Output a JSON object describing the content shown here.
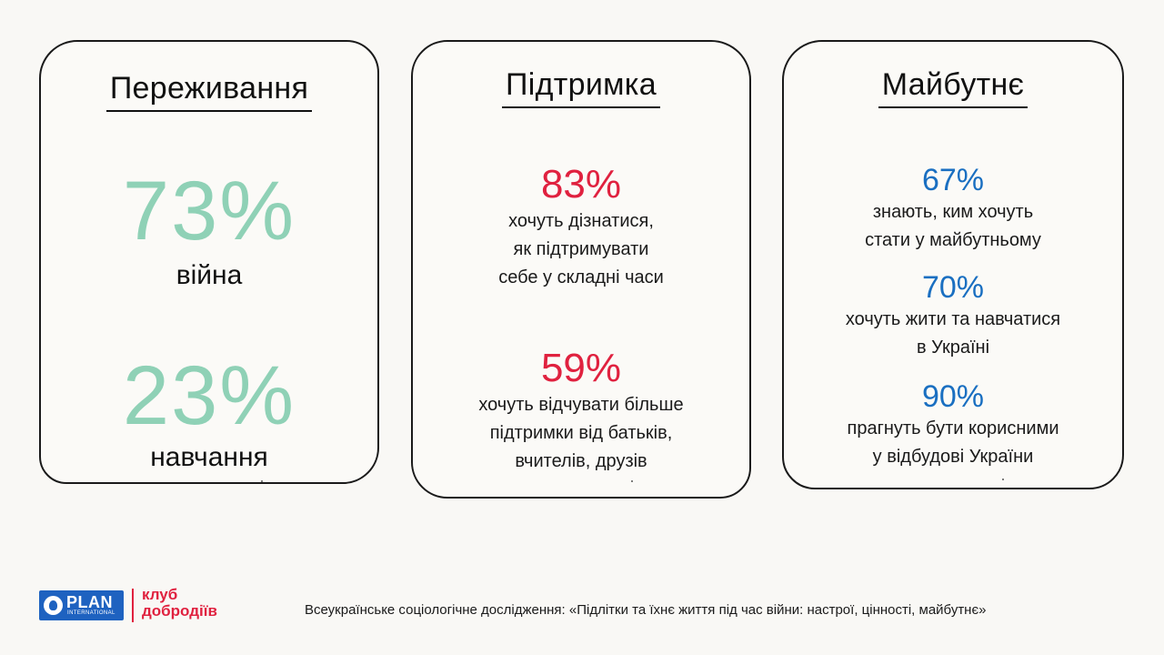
{
  "cards": [
    {
      "title": "Переживання",
      "stats": [
        {
          "value": "73%",
          "label": "війна"
        },
        {
          "value": "23%",
          "label": "навчання"
        }
      ]
    },
    {
      "title": "Підтримка",
      "stats": [
        {
          "value": "83%",
          "lines": [
            "хочуть дізнатися,",
            "як підтримувати",
            "себе у складні часи"
          ]
        },
        {
          "value": "59%",
          "lines": [
            "хочуть відчувати більше",
            "підтримки від батьків,",
            "вчителів, друзів"
          ]
        }
      ]
    },
    {
      "title": "Майбутнє",
      "stats": [
        {
          "value": "67%",
          "lines": [
            "знають, ким хочуть",
            "стати у майбутньому"
          ]
        },
        {
          "value": "70%",
          "lines": [
            "хочуть жити та навчатися",
            "в Україні"
          ]
        },
        {
          "value": "90%",
          "lines": [
            "прагнуть бути корисними",
            "у відбудові України"
          ]
        }
      ]
    }
  ],
  "footer": {
    "plan_logo": {
      "word": "PLAN",
      "sub": "INTERNATIONAL"
    },
    "club_logo": {
      "line1": "клуб",
      "line2": "добродіїв"
    },
    "source": "Всеукраїнське соціологічне дослідження: «Підлітки та їхнє життя під час війни: настрої, цінності, майбутнє»"
  },
  "colors": {
    "green": "#8fd1b6",
    "red": "#e0213f",
    "blue": "#1a6fc1",
    "plan_blue": "#1e62c0"
  }
}
